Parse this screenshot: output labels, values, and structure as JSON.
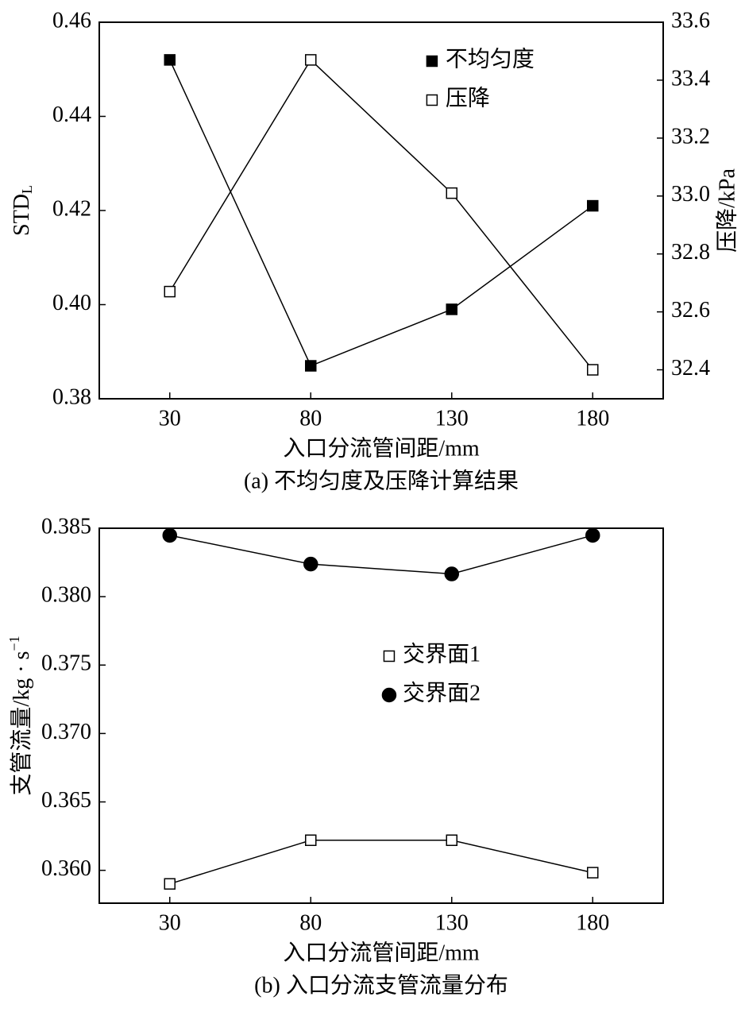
{
  "chart_data": [
    {
      "type": "line",
      "caption": "(a) 不均匀度及压降计算结果",
      "xlabel": "入口分流管间距/mm",
      "ylabel": "STD",
      "ylabel_sub": "L",
      "y2label": "压降/kPa",
      "x": [
        30,
        80,
        130,
        180
      ],
      "xlim": [
        5,
        205
      ],
      "xticks": [
        30,
        80,
        130,
        180
      ],
      "ylim": [
        0.38,
        0.46
      ],
      "yticks": [
        0.38,
        {
          "value": 0.4,
          "label": "0.40"
        },
        0.42,
        0.44,
        0.46
      ],
      "y2lim": [
        32.3,
        33.6
      ],
      "y2ticks": [
        32.4,
        32.6,
        32.8,
        {
          "value": 33,
          "label": "33.0"
        },
        33.2,
        33.4,
        33.6
      ],
      "legend": "upper right",
      "series": [
        {
          "name": "不均匀度",
          "color": "#000000",
          "marker": "filled-square",
          "values": [
            0.452,
            0.387,
            0.399,
            0.421
          ]
        },
        {
          "name": "压降",
          "color": "#000000",
          "marker": "open-square",
          "axis": "y2",
          "values": [
            32.67,
            33.47,
            33.01,
            32.4
          ]
        }
      ]
    },
    {
      "type": "line",
      "caption": "(b) 入口分流支管流量分布",
      "xlabel": "入口分流管间距/mm",
      "ylabel": "支管流量/kg · s",
      "ylabel_sup": "−1",
      "x": [
        30,
        80,
        130,
        180
      ],
      "xlim": [
        5,
        205
      ],
      "xticks": [
        30,
        80,
        130,
        180
      ],
      "ylim": [
        0.3576,
        0.385
      ],
      "yticks": [
        {
          "value": 0.36,
          "label": "0.360"
        },
        0.365,
        {
          "value": 0.37,
          "label": "0.370"
        },
        0.375,
        {
          "value": 0.38,
          "label": "0.380"
        },
        0.385
      ],
      "legend": "center",
      "series": [
        {
          "name": "交界面1",
          "color": "#000000",
          "marker": "open-square",
          "values": [
            0.35901,
            0.3622,
            0.3622,
            0.35983
          ]
        },
        {
          "name": "交界面2",
          "color": "#000000",
          "marker": "filled-circle",
          "values": [
            0.38448,
            0.38238,
            0.38166,
            0.38448
          ]
        }
      ]
    }
  ]
}
